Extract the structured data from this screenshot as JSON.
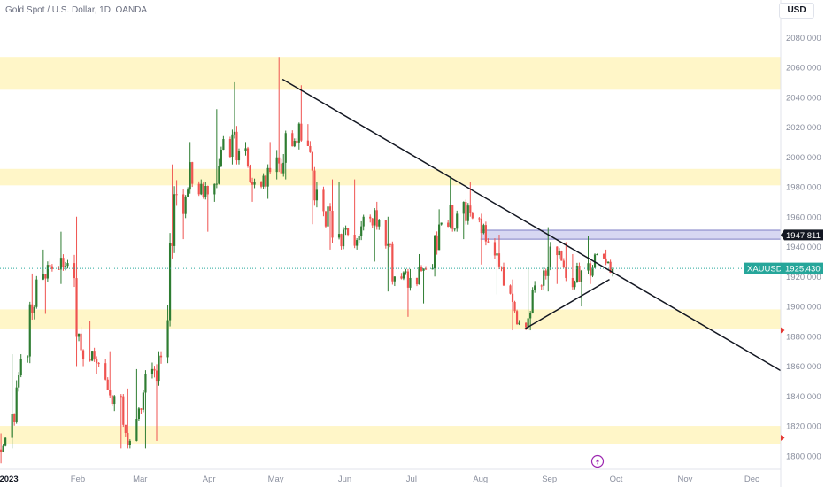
{
  "header": {
    "symbol_title": "Gold Spot / U.S. Dollar, 1D, OANDA",
    "currency": "USD"
  },
  "colors": {
    "up": "#2e7d32",
    "down": "#ef5350",
    "zone": "#fff6c8",
    "resistance_band": "#c9c9ee",
    "trendline": "#131722",
    "price_tag": "#26a69a",
    "level_tag": "#131722",
    "marker": "#e53935",
    "event_icon": "#9c27b0"
  },
  "chart_data": {
    "type": "candlestick",
    "symbol": "XAUUSD",
    "interval": "1D",
    "x_axis": {
      "labels": [
        "2023",
        "Feb",
        "Mar",
        "Apr",
        "May",
        "Jun",
        "Jul",
        "Aug",
        "Sep",
        "Oct",
        "Nov",
        "Dec"
      ],
      "range": [
        "2022-12-28",
        "2023-12-14"
      ]
    },
    "y_axis": {
      "ticks": [
        "1800.000",
        "1820.000",
        "1840.000",
        "1860.000",
        "1880.000",
        "1900.000",
        "1920.000",
        "1940.000",
        "1960.000",
        "1980.000",
        "2000.000",
        "2020.000",
        "2040.000",
        "2060.000",
        "2080.000"
      ],
      "range": [
        1791,
        2092
      ]
    },
    "current_price": {
      "label": "XAUUSD",
      "value": "1925.430",
      "level": 1925.43
    },
    "level_tag": {
      "value": "1947.811",
      "level": 1947.811
    },
    "zones": [
      {
        "from": 2045,
        "to": 2067
      },
      {
        "from": 1981,
        "to": 1992
      },
      {
        "from": 1885,
        "to": 1898
      },
      {
        "from": 1808,
        "to": 1820
      }
    ],
    "resistance_band": {
      "from": "2023-08-01",
      "to": "2023-12-14",
      "low": 1945,
      "high": 1951
    },
    "trendlines": [
      {
        "name": "descending-resistance",
        "start": [
          "2023-05-04",
          2052
        ],
        "end": [
          "2023-12-14",
          1857
        ]
      },
      {
        "name": "ascending-support",
        "start": [
          "2023-08-21",
          1885
        ],
        "end": [
          "2023-09-28",
          1918
        ]
      }
    ],
    "axis_markers": [
      1884,
      1812
    ],
    "weeks": [
      {
        "week": "2022-12-26",
        "open": 1798,
        "high": 1815,
        "low": 1795,
        "close": 1812
      },
      {
        "week": "2023-01-02",
        "open": 1812,
        "high": 1868,
        "low": 1805,
        "close": 1865
      },
      {
        "week": "2023-01-09",
        "open": 1866,
        "high": 1922,
        "low": 1862,
        "close": 1918
      },
      {
        "week": "2023-01-16",
        "open": 1918,
        "high": 1938,
        "low": 1895,
        "close": 1925
      },
      {
        "week": "2023-01-23",
        "open": 1925,
        "high": 1950,
        "low": 1915,
        "close": 1929
      },
      {
        "week": "2023-01-30",
        "open": 1929,
        "high": 1960,
        "low": 1860,
        "close": 1865
      },
      {
        "week": "2023-02-06",
        "open": 1865,
        "high": 1890,
        "low": 1855,
        "close": 1862
      },
      {
        "week": "2023-02-13",
        "open": 1862,
        "high": 1870,
        "low": 1830,
        "close": 1840
      },
      {
        "week": "2023-02-20",
        "open": 1840,
        "high": 1845,
        "low": 1805,
        "close": 1810
      },
      {
        "week": "2023-02-27",
        "open": 1810,
        "high": 1858,
        "low": 1805,
        "close": 1855
      },
      {
        "week": "2023-03-06",
        "open": 1855,
        "high": 1870,
        "low": 1810,
        "close": 1866
      },
      {
        "week": "2023-03-13",
        "open": 1866,
        "high": 1995,
        "low": 1862,
        "close": 1975
      },
      {
        "week": "2023-03-20",
        "open": 1975,
        "high": 2010,
        "low": 1945,
        "close": 1982
      },
      {
        "week": "2023-03-27",
        "open": 1982,
        "high": 1985,
        "low": 1950,
        "close": 1975
      },
      {
        "week": "2023-04-03",
        "open": 1975,
        "high": 2032,
        "low": 1970,
        "close": 2012
      },
      {
        "week": "2023-04-10",
        "open": 2012,
        "high": 2050,
        "low": 1995,
        "close": 2004
      },
      {
        "week": "2023-04-17",
        "open": 2004,
        "high": 2010,
        "low": 1970,
        "close": 1983
      },
      {
        "week": "2023-04-24",
        "open": 1983,
        "high": 2010,
        "low": 1972,
        "close": 1990
      },
      {
        "week": "2023-05-01",
        "open": 1990,
        "high": 2067,
        "low": 1985,
        "close": 2016
      },
      {
        "week": "2023-05-08",
        "open": 2016,
        "high": 2048,
        "low": 2005,
        "close": 2011
      },
      {
        "week": "2023-05-15",
        "open": 2011,
        "high": 2022,
        "low": 1955,
        "close": 1978
      },
      {
        "week": "2023-05-22",
        "open": 1978,
        "high": 1985,
        "low": 1938,
        "close": 1946
      },
      {
        "week": "2023-05-29",
        "open": 1946,
        "high": 1983,
        "low": 1938,
        "close": 1948
      },
      {
        "week": "2023-06-05",
        "open": 1948,
        "high": 1985,
        "low": 1938,
        "close": 1960
      },
      {
        "week": "2023-06-12",
        "open": 1960,
        "high": 1970,
        "low": 1930,
        "close": 1958
      },
      {
        "week": "2023-06-19",
        "open": 1958,
        "high": 1960,
        "low": 1910,
        "close": 1920
      },
      {
        "week": "2023-06-26",
        "open": 1920,
        "high": 1925,
        "low": 1893,
        "close": 1919
      },
      {
        "week": "2023-07-03",
        "open": 1919,
        "high": 1935,
        "low": 1902,
        "close": 1925
      },
      {
        "week": "2023-07-10",
        "open": 1925,
        "high": 1965,
        "low": 1920,
        "close": 1956
      },
      {
        "week": "2023-07-17",
        "open": 1956,
        "high": 1987,
        "low": 1950,
        "close": 1962
      },
      {
        "week": "2023-07-24",
        "open": 1962,
        "high": 1983,
        "low": 1945,
        "close": 1959
      },
      {
        "week": "2023-07-31",
        "open": 1959,
        "high": 1962,
        "low": 1928,
        "close": 1943
      },
      {
        "week": "2023-08-07",
        "open": 1943,
        "high": 1948,
        "low": 1908,
        "close": 1914
      },
      {
        "week": "2023-08-14",
        "open": 1914,
        "high": 1918,
        "low": 1884,
        "close": 1889
      },
      {
        "week": "2023-08-21",
        "open": 1889,
        "high": 1925,
        "low": 1884,
        "close": 1914
      },
      {
        "week": "2023-08-28",
        "open": 1914,
        "high": 1953,
        "low": 1910,
        "close": 1940
      },
      {
        "week": "2023-09-04",
        "open": 1940,
        "high": 1943,
        "low": 1915,
        "close": 1919
      },
      {
        "week": "2023-09-11",
        "open": 1919,
        "high": 1935,
        "low": 1900,
        "close": 1924
      },
      {
        "week": "2023-09-18",
        "open": 1924,
        "high": 1947,
        "low": 1915,
        "close": 1935
      },
      {
        "week": "2023-09-25",
        "open": 1935,
        "high": 1938,
        "low": 1920,
        "close": 1925
      }
    ]
  }
}
